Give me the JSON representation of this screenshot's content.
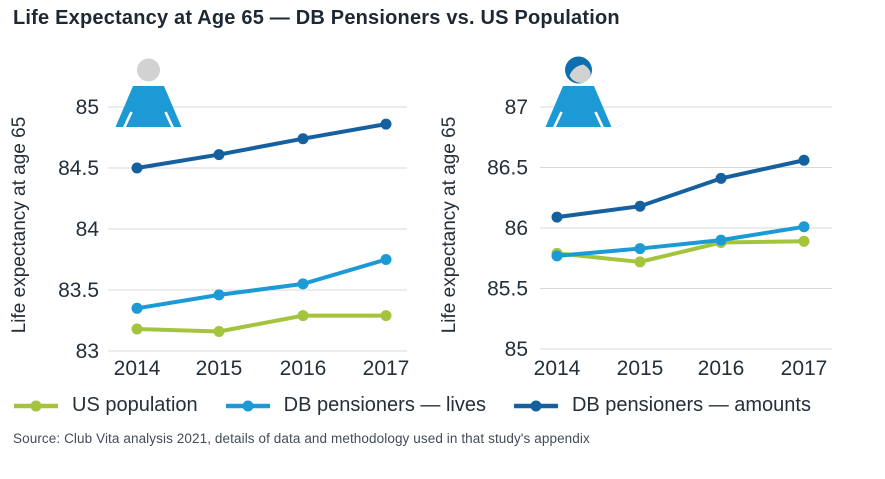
{
  "title": "Life Expectancy at Age 65 — DB Pensioners vs. US Population",
  "source": "Source: Club Vita analysis 2021, details of data and methodology used in that study's appendix",
  "colors": {
    "us_population_green": "#a4c43e",
    "db_lives_blue": "#1b9ad6",
    "db_amounts_blue": "#15609f",
    "icon_body_blue": "#1b9ad6",
    "icon_head_gray": "#d2d2d2",
    "icon_hair_blue": "#0d6fad",
    "gridline_gray": "#d9d9d9",
    "text_dark": "#242f3a"
  },
  "legend": [
    {
      "label": "US population",
      "color": "#a4c43e"
    },
    {
      "label": "DB pensioners — lives",
      "color": "#1b9ad6"
    },
    {
      "label": "DB pensioners — amounts",
      "color": "#15609f"
    }
  ],
  "chart_data": [
    {
      "type": "line",
      "group": "men",
      "icon": "male-person-icon",
      "ylabel": "Life expectancy at age 65",
      "categories": [
        "2014",
        "2015",
        "2016",
        "2017"
      ],
      "ylim": [
        83,
        85
      ],
      "yticks": [
        85,
        84.5,
        84,
        83.5,
        83
      ],
      "grid": "horizontal",
      "series": [
        {
          "name": "US population",
          "color": "#a4c43e",
          "values": [
            83.18,
            83.16,
            83.29,
            83.29
          ]
        },
        {
          "name": "DB pensioners — lives",
          "color": "#1b9ad6",
          "values": [
            83.35,
            83.46,
            83.55,
            83.75
          ]
        },
        {
          "name": "DB pensioners — amounts",
          "color": "#15609f",
          "values": [
            84.5,
            84.61,
            84.74,
            84.86
          ]
        }
      ]
    },
    {
      "type": "line",
      "group": "women",
      "icon": "female-person-icon",
      "ylabel": "Life expectancy at age 65",
      "categories": [
        "2014",
        "2015",
        "2016",
        "2017"
      ],
      "ylim": [
        85,
        87
      ],
      "yticks": [
        87,
        86.5,
        86,
        85.5,
        85
      ],
      "grid": "horizontal",
      "series": [
        {
          "name": "US population",
          "color": "#a4c43e",
          "values": [
            85.79,
            85.72,
            85.88,
            85.89
          ]
        },
        {
          "name": "DB pensioners — lives",
          "color": "#1b9ad6",
          "values": [
            85.77,
            85.83,
            85.9,
            86.01
          ]
        },
        {
          "name": "DB pensioners — amounts",
          "color": "#15609f",
          "values": [
            86.09,
            86.18,
            86.41,
            86.56
          ]
        }
      ]
    }
  ]
}
